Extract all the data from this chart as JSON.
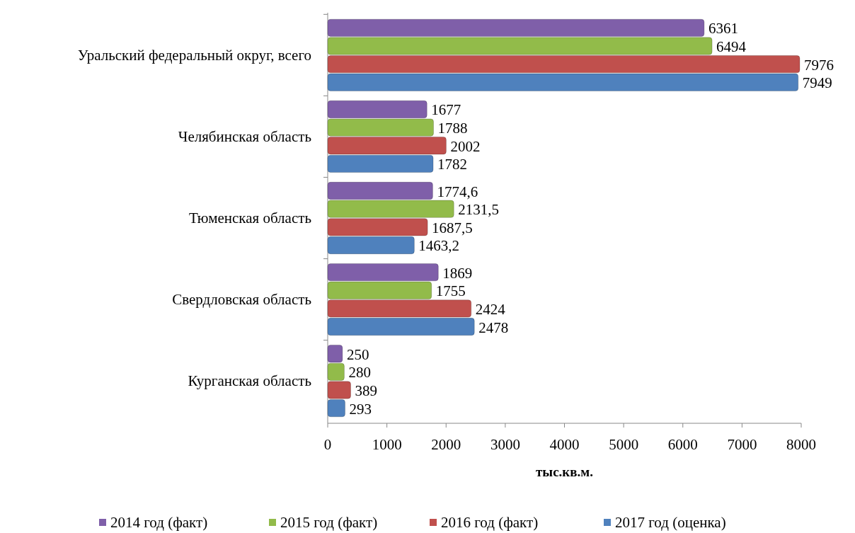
{
  "chart_data": {
    "type": "bar",
    "orientation": "horizontal",
    "xlabel": "тыс.кв.м.",
    "categories": [
      "Уральский федеральный округ, всего",
      "Челябинская область",
      "Тюменская область",
      "Свердловская область",
      "Курганская область"
    ],
    "series": [
      {
        "name": "2014 год (факт)",
        "color": "#7f5fa9",
        "values": [
          6361,
          1677,
          1774.6,
          1869,
          250
        ],
        "value_labels": [
          "6361",
          "1677",
          "1774,6",
          "1869",
          "250"
        ]
      },
      {
        "name": "2015 год (факт)",
        "color": "#92bb4a",
        "values": [
          6494,
          1788,
          2131.5,
          1755,
          280
        ],
        "value_labels": [
          "6494",
          "1788",
          "2131,5",
          "1755",
          "280"
        ]
      },
      {
        "name": "2016 год (факт)",
        "color": "#c0504d",
        "values": [
          7976,
          2002,
          1687.5,
          2424,
          389
        ],
        "value_labels": [
          "7976",
          "2002",
          "1687,5",
          "2424",
          "389"
        ]
      },
      {
        "name": "2017 год (оценка)",
        "color": "#4f81bd",
        "values": [
          7949,
          1782,
          1463.2,
          2478,
          293
        ],
        "value_labels": [
          "7949",
          "1782",
          "1463,2",
          "2478",
          "293"
        ]
      }
    ],
    "xlim": [
      0,
      8000
    ],
    "xticks": [
      0,
      1000,
      2000,
      3000,
      4000,
      5000,
      6000,
      7000,
      8000
    ],
    "legend": "bottom"
  }
}
